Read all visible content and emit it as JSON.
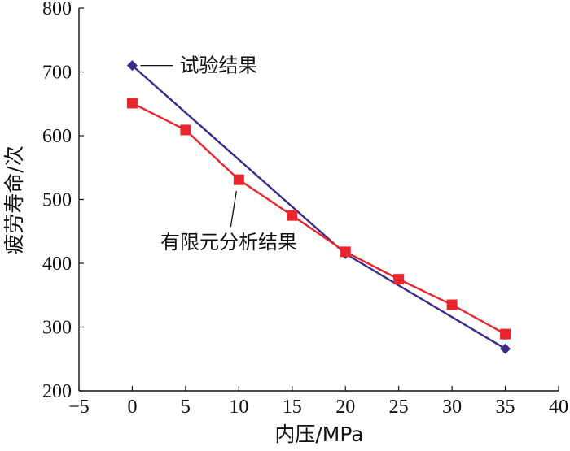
{
  "chart_data": {
    "type": "line",
    "title": "",
    "xlabel": "内压/MPa",
    "ylabel": "疲劳寿命/次",
    "xlim": [
      -5,
      40
    ],
    "ylim": [
      200,
      800
    ],
    "xticks": [
      -5,
      0,
      5,
      10,
      15,
      20,
      25,
      30,
      35,
      40
    ],
    "yticks": [
      200,
      300,
      400,
      500,
      600,
      700,
      800
    ],
    "xtick_labels": [
      "−5",
      "0",
      "5",
      "10",
      "15",
      "20",
      "25",
      "30",
      "35",
      "40"
    ],
    "ytick_labels": [
      "200",
      "300",
      "400",
      "500",
      "600",
      "700",
      "800"
    ],
    "grid": false,
    "series": [
      {
        "name": "试验结果",
        "color": "#3b2a8c",
        "marker": "diamond",
        "x": [
          0,
          20,
          35
        ],
        "y": [
          710,
          415,
          266
        ]
      },
      {
        "name": "有限元分析结果",
        "color": "#e8262b",
        "marker": "square",
        "x": [
          0,
          5,
          10,
          15,
          20,
          25,
          30,
          35
        ],
        "y": [
          651,
          609,
          531,
          475,
          418,
          375,
          335,
          289
        ]
      }
    ],
    "annotations": [
      {
        "text": "试验结果",
        "x": 0,
        "y": 710,
        "series": "试验结果"
      },
      {
        "text": "有限元分析结果",
        "x": 10,
        "y": 531,
        "series": "有限元分析结果"
      }
    ]
  }
}
